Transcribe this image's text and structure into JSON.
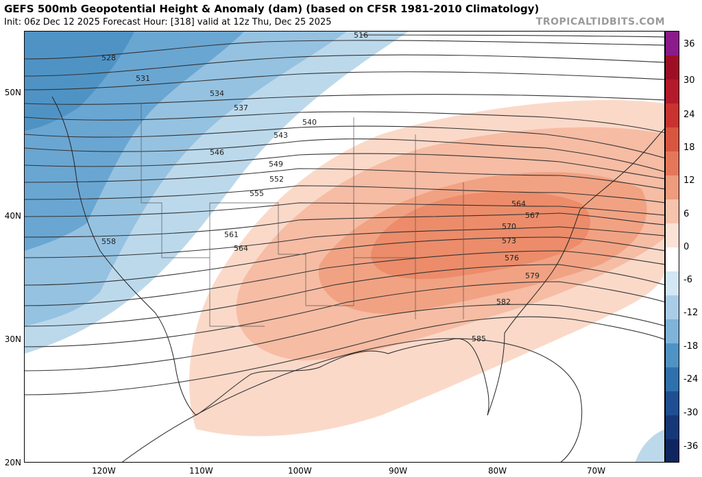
{
  "header": {
    "title": "GEFS 500mb Geopotential Height & Anomaly (dam) (based on CFSR 1981-2010 Climatology)",
    "subtitle": "Init: 06z Dec 12 2025   Forecast Hour: [318]   valid at 12z Thu, Dec 25 2025",
    "brand": "TROPICALTIDBITS.COM"
  },
  "map": {
    "latitude_labels": [
      "50N",
      "40N",
      "30N",
      "20N"
    ],
    "longitude_labels": [
      "120W",
      "110W",
      "100W",
      "90W",
      "80W",
      "70W"
    ],
    "height_contours_dam": [
      "516",
      "528",
      "531",
      "534",
      "537",
      "540",
      "543",
      "546",
      "549",
      "552",
      "555",
      "558",
      "561",
      "564",
      "567",
      "570",
      "573",
      "576",
      "579",
      "582",
      "585"
    ],
    "anomaly_regions": [
      {
        "name": "western-trough",
        "sign": "negative",
        "color": "#4d8fc4"
      },
      {
        "name": "eastern-ridge",
        "sign": "positive",
        "color": "#e68a68"
      }
    ]
  },
  "colorbar": {
    "labels": [
      "36",
      "30",
      "24",
      "18",
      "12",
      "6",
      "0",
      "-6",
      "-12",
      "-18",
      "-24",
      "-30",
      "-36"
    ],
    "colors": [
      "#8b1a8b",
      "#9e0f26",
      "#b31a2c",
      "#c8332f",
      "#d8563f",
      "#e4775a",
      "#ee9b7e",
      "#f6c3ad",
      "#fbe2d6",
      "#ffffff",
      "#d3e6f3",
      "#a9cde6",
      "#7fb3d8",
      "#4f93c5",
      "#2f71ad",
      "#1f4f92",
      "#163878",
      "#0e2660"
    ]
  }
}
